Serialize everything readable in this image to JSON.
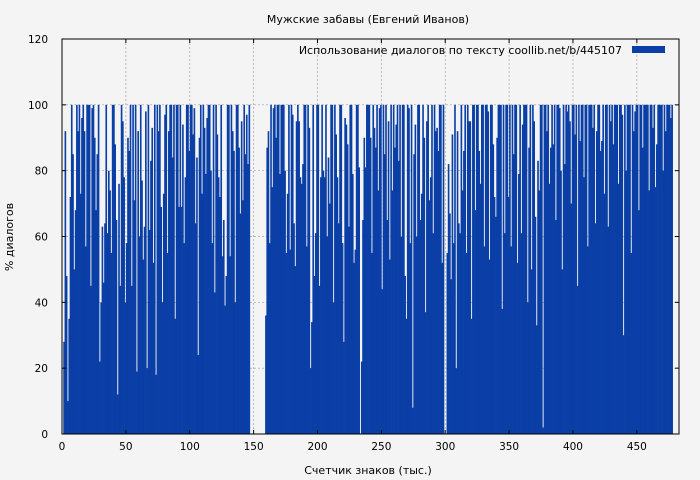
{
  "chart_data": {
    "type": "bar",
    "title": "Мужские забавы (Евгений Иванов)",
    "xlabel": "Счетчик знаков (тыс.)",
    "ylabel": "% диалогов",
    "xlim": [
      0,
      483
    ],
    "ylim": [
      0,
      120
    ],
    "xticks": [
      0,
      50,
      100,
      150,
      200,
      250,
      300,
      350,
      400,
      450
    ],
    "yticks": [
      0,
      20,
      40,
      60,
      80,
      100,
      120
    ],
    "grid": true,
    "legend_position": "top-right",
    "colors": {
      "series": "#0a3fa6",
      "background": "#f4f4f4",
      "grid": "#a0a0a0"
    },
    "series": [
      {
        "name": "Использование диалогов по тексту  coollib.net/b/445107",
        "x_start": 0,
        "x_step": 1,
        "values": [
          0,
          28,
          92,
          48,
          10,
          35,
          72,
          100,
          85,
          50,
          68,
          100,
          92,
          100,
          73,
          96,
          100,
          92,
          57,
          100,
          100,
          100,
          45,
          99,
          100,
          90,
          68,
          85,
          100,
          22,
          40,
          63,
          46,
          64,
          100,
          61,
          80,
          74,
          55,
          100,
          100,
          88,
          65,
          12,
          76,
          45,
          100,
          95,
          78,
          40,
          58,
          90,
          86,
          100,
          45,
          100,
          71,
          100,
          19,
          92,
          60,
          100,
          77,
          53,
          63,
          98,
          20,
          100,
          62,
          83,
          93,
          52,
          100,
          18,
          100,
          92,
          100,
          69,
          40,
          73,
          97,
          100,
          55,
          92,
          100,
          100,
          84,
          100,
          35,
          100,
          100,
          69,
          100,
          69,
          94,
          58,
          78,
          100,
          100,
          86,
          100,
          100,
          91,
          99,
          64,
          84,
          24,
          90,
          100,
          73,
          100,
          93,
          79,
          96,
          100,
          100,
          80,
          58,
          100,
          43,
          100,
          91,
          78,
          72,
          100,
          54,
          65,
          39,
          48,
          100,
          100,
          54,
          100,
          92,
          86,
          40,
          100,
          100,
          87,
          67,
          95,
          71,
          100,
          85,
          97,
          82,
          100,
          0,
          0,
          0,
          0,
          0,
          0,
          0,
          0,
          0,
          0,
          0,
          0,
          36,
          87,
          92,
          58,
          100,
          75,
          99,
          100,
          90,
          100,
          100,
          79,
          100,
          100,
          100,
          80,
          55,
          73,
          100,
          56,
          100,
          97,
          64,
          51,
          95,
          100,
          95,
          78,
          76,
          82,
          100,
          100,
          57,
          100,
          93,
          20,
          34,
          100,
          48,
          61,
          100,
          100,
          45,
          78,
          100,
          80,
          78,
          100,
          60,
          84,
          70,
          100,
          100,
          40,
          100,
          91,
          78,
          64,
          100,
          100,
          58,
          28,
          96,
          94,
          88,
          63,
          100,
          100,
          79,
          52,
          56,
          100,
          100,
          81,
          0,
          22,
          65,
          90,
          81,
          100,
          100,
          100,
          90,
          55,
          100,
          93,
          87,
          100,
          74,
          99,
          100,
          44,
          100,
          85,
          100,
          65,
          95,
          53,
          100,
          74,
          100,
          87,
          94,
          100,
          83,
          100,
          60,
          100,
          100,
          48,
          35,
          100,
          99,
          58,
          100,
          8,
          85,
          94,
          60,
          100,
          100,
          65,
          73,
          100,
          90,
          37,
          95,
          100,
          71,
          78,
          100,
          61,
          100,
          92,
          93,
          86,
          100,
          100,
          52,
          100,
          0,
          0,
          55,
          82,
          67,
          47,
          91,
          58,
          100,
          20,
          92,
          64,
          61,
          100,
          74,
          86,
          100,
          55,
          100,
          95,
          95,
          35,
          100,
          100,
          68,
          100,
          100,
          86,
          76,
          100,
          100,
          57,
          100,
          100,
          98,
          53,
          100,
          100,
          88,
          72,
          66,
          90,
          100,
          100,
          100,
          38,
          100,
          61,
          100,
          100,
          72,
          100,
          57,
          100,
          85,
          100,
          100,
          52,
          79,
          100,
          61,
          94,
          100,
          100,
          100,
          40,
          87,
          100,
          50,
          100,
          95,
          66,
          33,
          83,
          74,
          100,
          100,
          2,
          100,
          100,
          92,
          100,
          76,
          87,
          100,
          88,
          100,
          65,
          100,
          100,
          99,
          80,
          50,
          100,
          82,
          100,
          98,
          100,
          95,
          70,
          100,
          100,
          91,
          100,
          45,
          100,
          89,
          100,
          100,
          78,
          100,
          100,
          57,
          100,
          100,
          100,
          93,
          100,
          64,
          92,
          100,
          100,
          86,
          89,
          100,
          73,
          100,
          100,
          63,
          100,
          95,
          100,
          88,
          100,
          100,
          100,
          76,
          100,
          100,
          97,
          30,
          100,
          80,
          100,
          100,
          100,
          55,
          100,
          92,
          98,
          100,
          100,
          68,
          100,
          100,
          87,
          100,
          100,
          100,
          100,
          74,
          100,
          100,
          93,
          100,
          75,
          88,
          100,
          100,
          100,
          100,
          80,
          100,
          92,
          100,
          100,
          100,
          96,
          100
        ]
      }
    ]
  }
}
